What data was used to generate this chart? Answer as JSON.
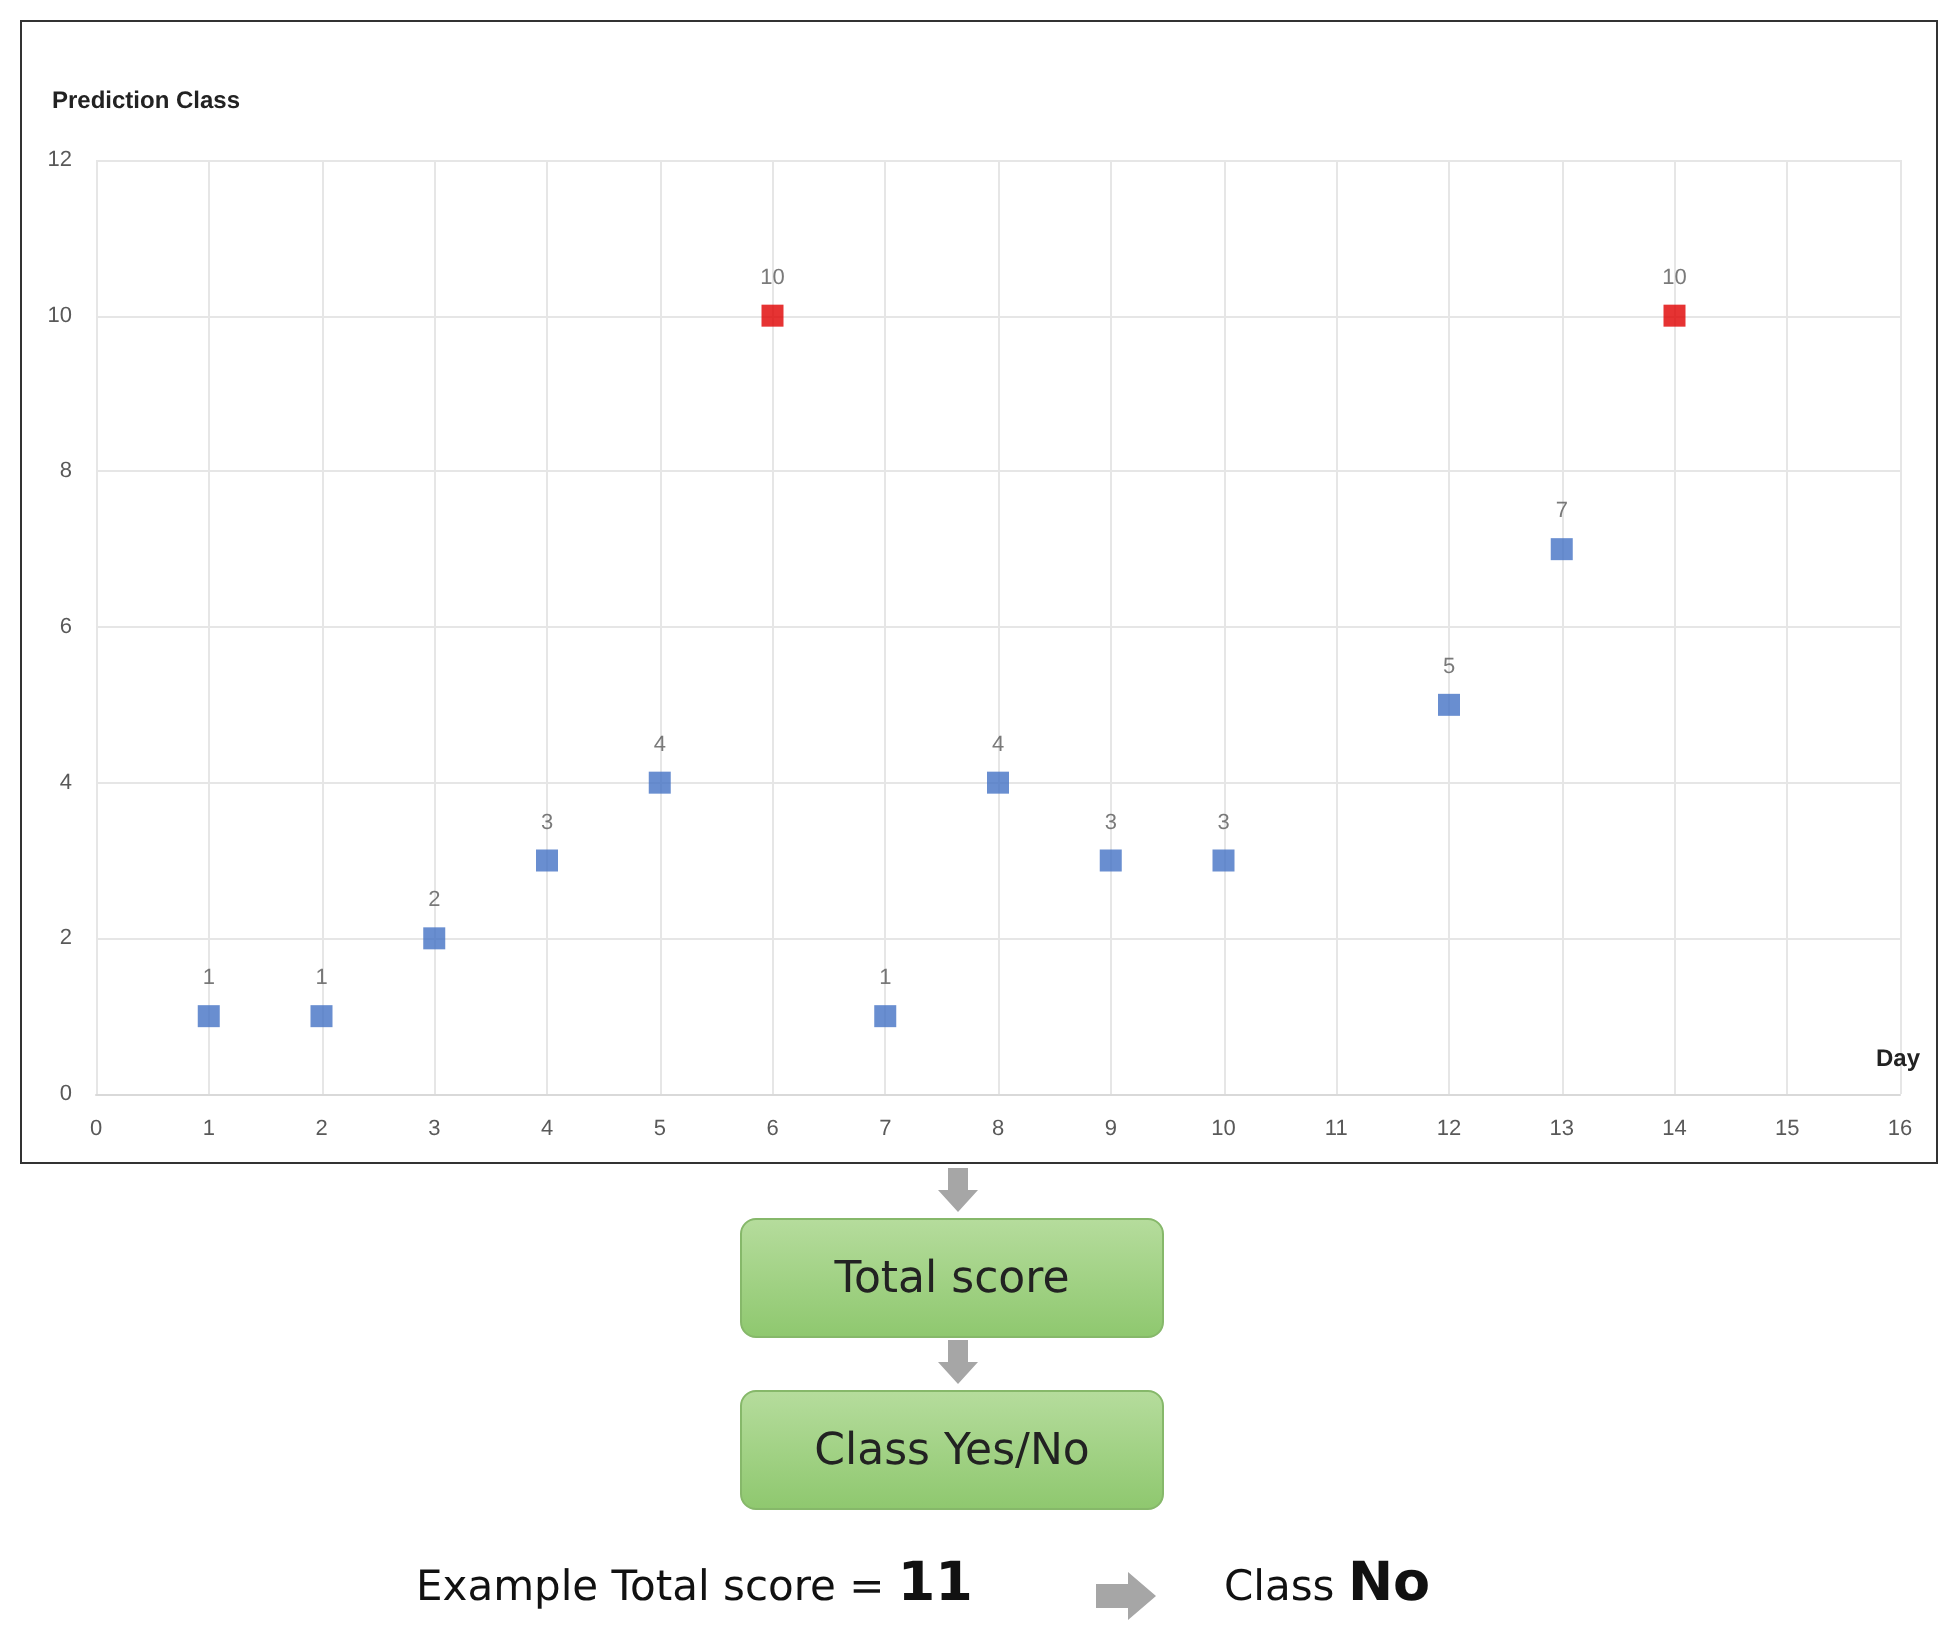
{
  "chart_data": {
    "type": "scatter",
    "ylabel": "Prediction Class",
    "xlabel": "Day",
    "x": [
      1,
      2,
      3,
      4,
      5,
      6,
      7,
      8,
      9,
      10,
      12,
      13,
      14
    ],
    "values": [
      1,
      1,
      2,
      3,
      4,
      10,
      1,
      4,
      3,
      3,
      5,
      7,
      10
    ],
    "colors": [
      "#4472c4",
      "#4472c4",
      "#4472c4",
      "#4472c4",
      "#4472c4",
      "#e00000",
      "#4472c4",
      "#4472c4",
      "#4472c4",
      "#4472c4",
      "#4472c4",
      "#4472c4",
      "#e00000"
    ],
    "xlim": [
      0,
      16
    ],
    "xticks": [
      0,
      1,
      2,
      3,
      4,
      5,
      6,
      7,
      8,
      9,
      10,
      11,
      12,
      13,
      14,
      15,
      16
    ],
    "ylim": [
      0,
      12
    ],
    "yticks": [
      0,
      2,
      4,
      6,
      8,
      10,
      12
    ],
    "grid": true,
    "marker": "square",
    "data_labels": true,
    "annotations": [
      "Total score",
      "Class Yes/No",
      "Example Total score = 11",
      "Class No"
    ]
  }
}
